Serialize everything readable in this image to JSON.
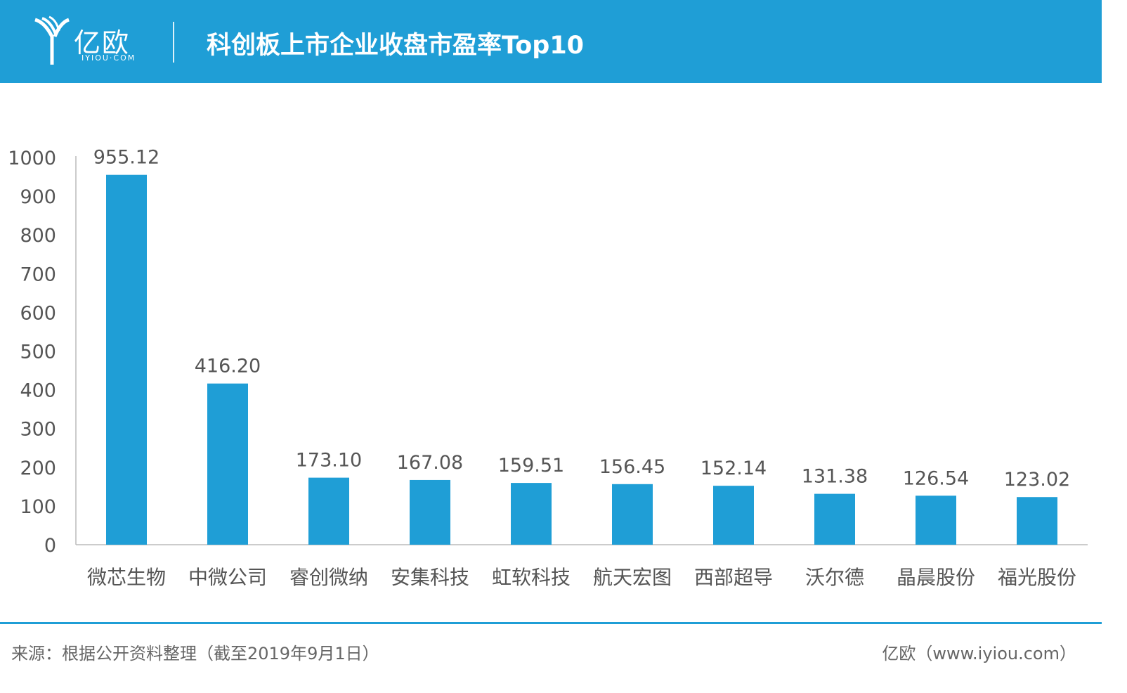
{
  "header": {
    "logo_text": "亿欧",
    "logo_sub": "IYIOU·COM",
    "title": "科创板上市企业收盘市盈率Top10"
  },
  "colors": {
    "accent": "#1f9ed6",
    "bar": "#1f9ed6",
    "text": "#555555"
  },
  "chart_data": {
    "type": "bar",
    "title": "科创板上市企业收盘市盈率Top10",
    "xlabel": "",
    "ylabel": "",
    "categories": [
      "微芯生物",
      "中微公司",
      "睿创微纳",
      "安集科技",
      "虹软科技",
      "航天宏图",
      "西部超导",
      "沃尔德",
      "晶晨股份",
      "福光股份"
    ],
    "values": [
      955.12,
      416.2,
      173.1,
      167.08,
      159.51,
      156.45,
      152.14,
      131.38,
      126.54,
      123.02
    ],
    "value_labels": [
      "955.12",
      "416.20",
      "173.10",
      "167.08",
      "159.51",
      "156.45",
      "152.14",
      "131.38",
      "126.54",
      "123.02"
    ],
    "ylim": [
      0,
      1000
    ],
    "yticks": [
      0,
      100,
      200,
      300,
      400,
      500,
      600,
      700,
      800,
      900,
      1000
    ],
    "grid": false,
    "legend": "none"
  },
  "footer": {
    "source": "来源：根据公开资料整理（截至2019年9月1日）",
    "credit": "亿欧（www.iyiou.com）"
  }
}
